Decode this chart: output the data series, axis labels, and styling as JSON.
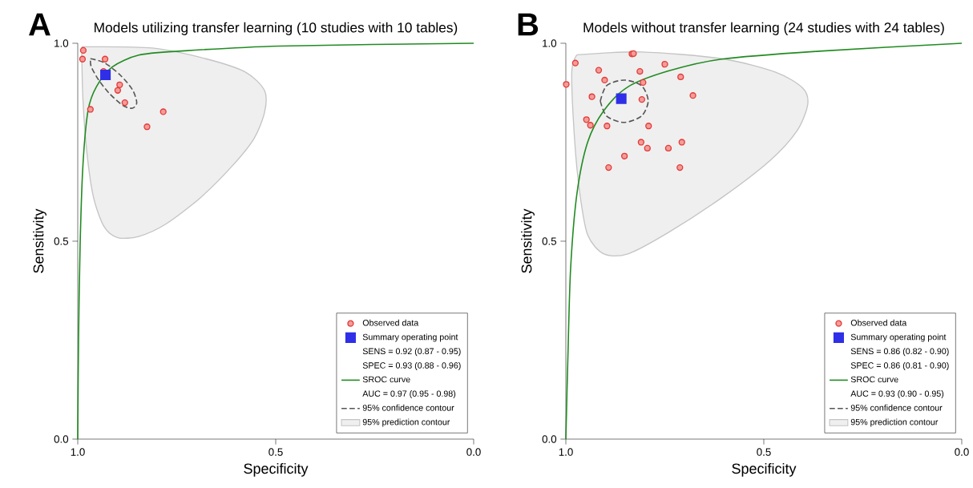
{
  "chart_data": [
    {
      "type": "scatter",
      "title": "Models utilizing transfer learning (10 studies with 10 tables)",
      "xlabel": "Specificity",
      "ylabel": "Sensitivity",
      "annotations": [
        "A",
        "SENS = 0.92 (0.87 - 0.95)",
        "SPEC = 0.93 (0.88 - 0.96)",
        "AUC = 0.97 (0.95 - 0.98)"
      ],
      "xlim": [
        1,
        0
      ],
      "ylim": [
        0,
        1
      ],
      "xticks": [
        {
          "value": 1,
          "label": "1.0"
        },
        {
          "value": 0.5,
          "label": "0.5"
        },
        {
          "value": 0,
          "label": "0.0"
        }
      ],
      "yticks": [
        {
          "value": 0,
          "label": "0.0"
        },
        {
          "value": 0.5,
          "label": "0.5"
        },
        {
          "value": 1,
          "label": "1.0"
        }
      ],
      "legend": "bottom right",
      "series": [
        {
          "name": "Observed data",
          "type": "scatter",
          "marker": "circle",
          "color": "#e53935",
          "x": [
            0.986,
            0.988,
            0.931,
            0.935,
            0.894,
            0.899,
            0.881,
            0.968,
            0.784,
            0.825
          ],
          "values": [
            0.982,
            0.96,
            0.96,
            0.929,
            0.895,
            0.881,
            0.85,
            0.833,
            0.827,
            0.789
          ]
        },
        {
          "name": "Summary operating point",
          "type": "scatter",
          "marker": "square",
          "color": "#2f2fe8",
          "x": [
            0.93
          ],
          "values": [
            0.92
          ]
        },
        {
          "name": "SROC curve",
          "type": "line",
          "color": "#228b22",
          "x": [
            1.0,
            0.998,
            0.994,
            0.987,
            0.974,
            0.953,
            0.913,
            0.846,
            0.744,
            0.49,
            0.0
          ],
          "values": [
            0.0,
            0.25,
            0.49,
            0.69,
            0.83,
            0.89,
            0.94,
            0.97,
            0.98,
            0.993,
            1.0
          ]
        },
        {
          "name": "95% confidence contour",
          "type": "area",
          "line_style": "dashed",
          "color": "#555555",
          "x": [
            0.968,
            0.933,
            0.893,
            0.862,
            0.851,
            0.862,
            0.886,
            0.92,
            0.947,
            0.966,
            0.968
          ],
          "values": [
            0.961,
            0.951,
            0.92,
            0.883,
            0.85,
            0.836,
            0.843,
            0.873,
            0.907,
            0.941,
            0.961
          ]
        },
        {
          "name": "95% prediction contour",
          "type": "area",
          "color": "#efefef",
          "x": [
            0.99,
            0.812,
            0.677,
            0.576,
            0.528,
            0.528,
            0.555,
            0.609,
            0.69,
            0.778,
            0.846,
            0.899,
            0.933,
            0.96,
            0.977,
            0.987,
            0.99
          ],
          "values": [
            0.991,
            0.988,
            0.961,
            0.927,
            0.88,
            0.826,
            0.759,
            0.691,
            0.61,
            0.543,
            0.512,
            0.509,
            0.536,
            0.61,
            0.725,
            0.86,
            0.991
          ]
        }
      ]
    },
    {
      "type": "scatter",
      "title": "Models without transfer learning (24 studies with 24 tables)",
      "xlabel": "Specificity",
      "ylabel": "Sensitivity",
      "annotations": [
        "B",
        "SENS = 0.86 (0.82 - 0.90)",
        "SPEC = 0.86 (0.81 - 0.90)",
        "AUC = 0.93 (0.90 - 0.95)"
      ],
      "xlim": [
        1,
        0
      ],
      "ylim": [
        0,
        1
      ],
      "xticks": [
        {
          "value": 1,
          "label": "1.0"
        },
        {
          "value": 0.5,
          "label": "0.5"
        },
        {
          "value": 0,
          "label": "0.0"
        }
      ],
      "yticks": [
        {
          "value": 0,
          "label": "0.0"
        },
        {
          "value": 0.5,
          "label": "0.5"
        },
        {
          "value": 1,
          "label": "1.0"
        }
      ],
      "legend": "bottom right",
      "series": [
        {
          "name": "Observed data",
          "type": "scatter",
          "marker": "circle",
          "color": "#e53935",
          "x": [
            0.999,
            0.976,
            0.833,
            0.829,
            0.917,
            0.75,
            0.813,
            0.902,
            0.805,
            0.71,
            0.934,
            0.808,
            0.679,
            0.948,
            0.938,
            0.896,
            0.791,
            0.81,
            0.794,
            0.741,
            0.707,
            0.852,
            0.892,
            0.712
          ],
          "values": [
            0.896,
            0.95,
            0.973,
            0.974,
            0.932,
            0.947,
            0.929,
            0.907,
            0.901,
            0.915,
            0.865,
            0.858,
            0.868,
            0.807,
            0.793,
            0.791,
            0.791,
            0.75,
            0.735,
            0.735,
            0.75,
            0.715,
            0.686,
            0.686
          ]
        },
        {
          "name": "Summary operating point",
          "type": "scatter",
          "marker": "square",
          "color": "#2f2fe8",
          "x": [
            0.86
          ],
          "values": [
            0.86
          ]
        },
        {
          "name": "SROC curve",
          "type": "line",
          "color": "#228b22",
          "x": [
            1.0,
            0.995,
            0.988,
            0.972,
            0.945,
            0.904,
            0.843,
            0.741,
            0.606,
            0.36,
            0.0
          ],
          "values": [
            0.0,
            0.2,
            0.43,
            0.62,
            0.75,
            0.83,
            0.89,
            0.93,
            0.96,
            0.98,
            1.0
          ]
        },
        {
          "name": "95% confidence contour",
          "type": "area",
          "line_style": "dashed",
          "color": "#555555",
          "x": [
            0.913,
            0.897,
            0.853,
            0.809,
            0.792,
            0.809,
            0.853,
            0.897,
            0.913
          ],
          "values": [
            0.854,
            0.893,
            0.907,
            0.893,
            0.854,
            0.816,
            0.8,
            0.816,
            0.854
          ]
        },
        {
          "name": "95% prediction contour",
          "type": "area",
          "color": "#efefef",
          "x": [
            0.972,
            0.809,
            0.606,
            0.47,
            0.402,
            0.389,
            0.416,
            0.484,
            0.606,
            0.741,
            0.843,
            0.904,
            0.945,
            0.965,
            0.978,
            0.985,
            0.972
          ],
          "values": [
            0.971,
            0.978,
            0.961,
            0.927,
            0.887,
            0.846,
            0.779,
            0.704,
            0.61,
            0.522,
            0.468,
            0.468,
            0.516,
            0.623,
            0.758,
            0.927,
            0.971
          ]
        }
      ]
    }
  ]
}
